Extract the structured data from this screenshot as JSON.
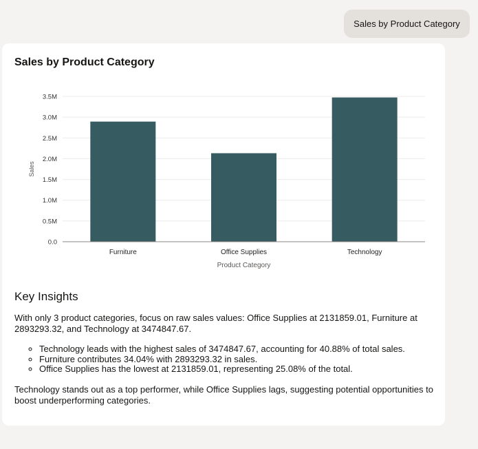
{
  "user_message": "Sales by Product Category",
  "card": {
    "title": "Sales by Product Category"
  },
  "chart_data": {
    "type": "bar",
    "title": "Sales by Product Category",
    "categories": [
      "Furniture",
      "Office Supplies",
      "Technology"
    ],
    "values": [
      2893293.32,
      2131859.01,
      3474847.67
    ],
    "xlabel": "Product Category",
    "ylabel": "Sales",
    "ylim": [
      0,
      3500000
    ],
    "yticks": [
      0,
      500000,
      1000000,
      1500000,
      2000000,
      2500000,
      3000000,
      3500000
    ],
    "ytick_labels": [
      "0.0",
      "0.5M",
      "1.0M",
      "1.5M",
      "2.0M",
      "2.5M",
      "3.0M",
      "3.5M"
    ],
    "grid": true,
    "bar_color": "#365b61"
  },
  "insights": {
    "heading": "Key Insights",
    "intro": "With only 3 product categories, focus on raw sales values: Office Supplies at 2131859.01, Furniture at 2893293.32, and Technology at 3474847.67.",
    "bullets": [
      "Technology leads with the highest sales of 3474847.67, accounting for 40.88% of total sales.",
      "Furniture contributes 34.04% with 2893293.32 in sales.",
      "Office Supplies has the lowest at 2131859.01, representing 25.08% of the total."
    ],
    "closing": "Technology stands out as a top performer, while Office Supplies lags, suggesting potential opportunities to boost underperforming categories."
  }
}
